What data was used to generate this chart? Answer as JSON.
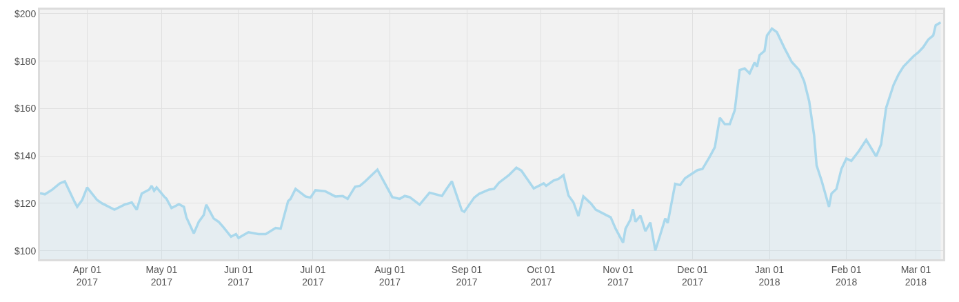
{
  "chart_data": {
    "type": "area",
    "marker": "none",
    "grid": true,
    "xlim": [
      "2017-03-13",
      "2018-03-12"
    ],
    "xticks": [
      {
        "value": "2017-04-01",
        "label": "Apr 01\n2017"
      },
      {
        "value": "2017-05-01",
        "label": "May 01\n2017"
      },
      {
        "value": "2017-06-01",
        "label": "Jun 01\n2017"
      },
      {
        "value": "2017-07-01",
        "label": "Jul 01\n2017"
      },
      {
        "value": "2017-08-01",
        "label": "Aug 01\n2017"
      },
      {
        "value": "2017-09-01",
        "label": "Sep 01\n2017"
      },
      {
        "value": "2017-10-01",
        "label": "Oct 01\n2017"
      },
      {
        "value": "2017-11-01",
        "label": "Nov 01\n2017"
      },
      {
        "value": "2017-12-01",
        "label": "Dec 01\n2017"
      },
      {
        "value": "2018-01-01",
        "label": "Jan 01\n2018"
      },
      {
        "value": "2018-02-01",
        "label": "Feb 01\n2018"
      },
      {
        "value": "2018-03-01",
        "label": "Mar 01\n2018"
      }
    ],
    "ylim": [
      96.4,
      201.7
    ],
    "yticks": [
      {
        "value": 100,
        "label": "$100"
      },
      {
        "value": 120,
        "label": "$120"
      },
      {
        "value": 140,
        "label": "$140"
      },
      {
        "value": 160,
        "label": "$160"
      },
      {
        "value": 180,
        "label": "$180"
      },
      {
        "value": 200,
        "label": "$200"
      }
    ],
    "x": [
      "2017-03-13",
      "2017-03-15",
      "2017-03-18",
      "2017-03-21",
      "2017-03-23",
      "2017-03-27",
      "2017-03-28",
      "2017-03-30",
      "2017-04-01",
      "2017-04-05",
      "2017-04-07",
      "2017-04-12",
      "2017-04-16",
      "2017-04-19",
      "2017-04-21",
      "2017-04-23",
      "2017-04-26",
      "2017-04-27",
      "2017-04-28",
      "2017-04-29",
      "2017-05-02",
      "2017-05-03",
      "2017-05-05",
      "2017-05-08",
      "2017-05-10",
      "2017-05-11",
      "2017-05-14",
      "2017-05-16",
      "2017-05-18",
      "2017-05-19",
      "2017-05-22",
      "2017-05-24",
      "2017-05-26",
      "2017-05-29",
      "2017-05-31",
      "2017-06-01",
      "2017-06-05",
      "2017-06-09",
      "2017-06-12",
      "2017-06-16",
      "2017-06-18",
      "2017-06-21",
      "2017-06-22",
      "2017-06-24",
      "2017-06-28",
      "2017-06-30",
      "2017-07-02",
      "2017-07-06",
      "2017-07-10",
      "2017-07-13",
      "2017-07-15",
      "2017-07-18",
      "2017-07-20",
      "2017-07-22",
      "2017-07-27",
      "2017-08-02",
      "2017-08-05",
      "2017-08-07",
      "2017-08-09",
      "2017-08-13",
      "2017-08-17",
      "2017-08-22",
      "2017-08-24",
      "2017-08-26",
      "2017-08-30",
      "2017-08-31",
      "2017-09-04",
      "2017-09-06",
      "2017-09-10",
      "2017-09-12",
      "2017-09-14",
      "2017-09-18",
      "2017-09-21",
      "2017-09-23",
      "2017-09-28",
      "2017-10-02",
      "2017-10-03",
      "2017-10-06",
      "2017-10-08",
      "2017-10-10",
      "2017-10-12",
      "2017-10-14",
      "2017-10-16",
      "2017-10-18",
      "2017-10-21",
      "2017-10-23",
      "2017-10-28",
      "2017-10-29",
      "2017-10-31",
      "2017-11-03",
      "2017-11-04",
      "2017-11-06",
      "2017-11-07",
      "2017-11-08",
      "2017-11-10",
      "2017-11-12",
      "2017-11-14",
      "2017-11-16",
      "2017-11-18",
      "2017-11-20",
      "2017-11-21",
      "2017-11-24",
      "2017-11-26",
      "2017-11-28",
      "2017-12-03",
      "2017-12-05",
      "2017-12-08",
      "2017-12-10",
      "2017-12-12",
      "2017-12-14",
      "2017-12-16",
      "2017-12-18",
      "2017-12-20",
      "2017-12-22",
      "2017-12-24",
      "2017-12-26",
      "2017-12-27",
      "2017-12-28",
      "2017-12-30",
      "2017-12-31",
      "2018-01-02",
      "2018-01-04",
      "2018-01-07",
      "2018-01-10",
      "2018-01-13",
      "2018-01-15",
      "2018-01-17",
      "2018-01-19",
      "2018-01-20",
      "2018-01-22",
      "2018-01-25",
      "2018-01-26",
      "2018-01-28",
      "2018-01-30",
      "2018-02-01",
      "2018-02-03",
      "2018-02-06",
      "2018-02-09",
      "2018-02-13",
      "2018-02-15",
      "2018-02-17",
      "2018-02-20",
      "2018-02-22",
      "2018-02-24",
      "2018-02-28",
      "2018-03-02",
      "2018-03-04",
      "2018-03-06",
      "2018-03-08",
      "2018-03-09",
      "2018-03-11"
    ],
    "series": [
      {
        "color": "#aad8ec",
        "values": [
          124.3,
          123.8,
          125.8,
          128.4,
          129.3,
          120.5,
          118.5,
          121.4,
          126.7,
          121.4,
          120,
          117.3,
          119.4,
          120.4,
          117.3,
          124.1,
          125.8,
          127.4,
          125.3,
          126.7,
          122.9,
          121.9,
          118,
          119.6,
          118.5,
          114.1,
          107.3,
          112.2,
          115.1,
          119.4,
          113.6,
          112.2,
          109.8,
          105.9,
          107,
          105.4,
          107.8,
          107,
          107,
          109.6,
          109.3,
          120.9,
          121.9,
          126.1,
          122.9,
          122.4,
          125.5,
          125.1,
          122.9,
          123.1,
          121.9,
          127,
          127.4,
          129.2,
          134.2,
          122.6,
          121.9,
          123.1,
          122.6,
          119.4,
          124.5,
          123.1,
          126.3,
          129.3,
          117,
          116.4,
          122.4,
          124,
          125.8,
          126.1,
          128.7,
          131.9,
          135,
          133.8,
          126.3,
          128.4,
          127.4,
          129.6,
          130.3,
          131.9,
          123.3,
          120.4,
          114.6,
          122.9,
          120,
          117.3,
          114.6,
          114.1,
          109.3,
          103.4,
          109.3,
          113.2,
          117.5,
          112.2,
          114.8,
          108.3,
          111.9,
          100.1,
          106.8,
          113.6,
          111.7,
          128.2,
          127.7,
          130.6,
          134,
          134.5,
          139.8,
          143.7,
          156.1,
          153.4,
          153.4,
          159.2,
          176.2,
          176.9,
          174.8,
          179.4,
          177.7,
          182.5,
          184.3,
          190.8,
          193.7,
          192.2,
          185.6,
          179.6,
          176.2,
          171.4,
          163.1,
          148.6,
          136,
          129.6,
          118.5,
          124.1,
          126.1,
          134.5,
          138.9,
          137.9,
          142,
          146.8,
          139.8,
          144.9,
          160.2,
          169.9,
          174.3,
          177.7,
          182,
          183.7,
          185.9,
          189.1,
          190.8,
          195.1,
          196.3
        ]
      }
    ]
  }
}
